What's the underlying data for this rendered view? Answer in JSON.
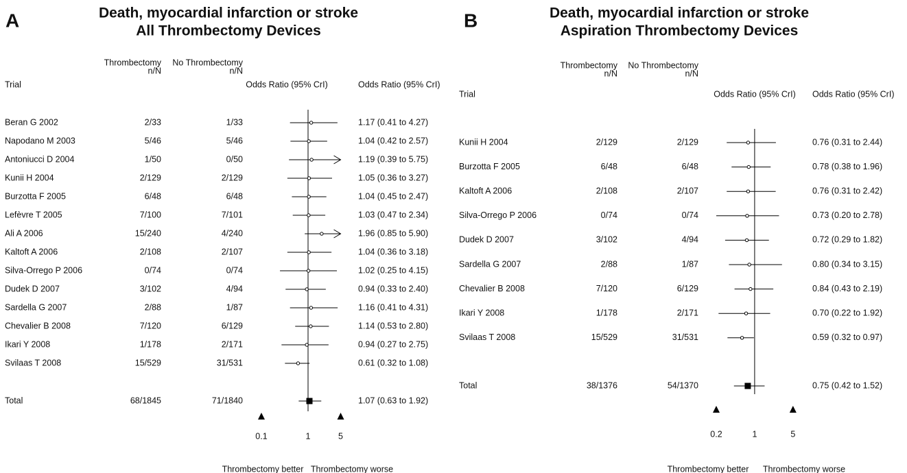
{
  "chart_data": [
    {
      "type": "forest",
      "panel": "A",
      "title": [
        "Death, myocardial infarction or stroke",
        "All Thrombectomy Devices"
      ],
      "columns": {
        "trial": "Trial",
        "treated": [
          "Thrombectomy",
          "n/N"
        ],
        "control": [
          "No Thrombectomy",
          "n/N"
        ],
        "plot": "Odds Ratio (95% CrI)",
        "estimate": "Odds Ratio (95% CrI)"
      },
      "categories": [
        "Beran G 2002",
        "Napodano M 2003",
        "Antoniucci D 2004",
        "Kunii H 2004",
        "Burzotta F 2005",
        "Lefèvre T 2005",
        "Ali A 2006",
        "Kaltoft A 2006",
        "Silva-Orrego P 2006",
        "Dudek D 2007",
        "Sardella G 2007",
        "Chevalier B 2008",
        "Ikari Y 2008",
        "Svilaas T 2008"
      ],
      "treated": [
        "2/33",
        "5/46",
        "1/50",
        "2/129",
        "6/48",
        "7/100",
        "15/240",
        "2/108",
        "0/74",
        "3/102",
        "2/88",
        "7/120",
        "1/178",
        "15/529"
      ],
      "control": [
        "1/33",
        "5/46",
        "0/50",
        "2/129",
        "6/48",
        "7/101",
        "4/240",
        "2/107",
        "0/74",
        "4/94",
        "1/87",
        "6/129",
        "2/171",
        "31/531"
      ],
      "values": [
        1.17,
        1.04,
        1.19,
        1.05,
        1.04,
        1.03,
        1.96,
        1.04,
        1.02,
        0.94,
        1.16,
        1.14,
        0.94,
        0.61
      ],
      "lower": [
        0.41,
        0.42,
        0.39,
        0.36,
        0.45,
        0.47,
        0.85,
        0.36,
        0.25,
        0.33,
        0.41,
        0.53,
        0.27,
        0.32
      ],
      "upper": [
        4.27,
        2.57,
        5.75,
        3.27,
        2.47,
        2.34,
        5.9,
        3.18,
        4.15,
        2.4,
        4.31,
        2.8,
        2.75,
        1.08
      ],
      "value_labels": [
        "1.17 (0.41 to 4.27)",
        "1.04 (0.42 to 2.57)",
        "1.19 (0.39 to 5.75)",
        "1.05 (0.36 to 3.27)",
        "1.04 (0.45 to 2.47)",
        "1.03 (0.47 to 2.34)",
        "1.96 (0.85 to 5.90)",
        "1.04 (0.36 to 3.18)",
        "1.02 (0.25 to 4.15)",
        "0.94 (0.33 to 2.40)",
        "1.16 (0.41 to 4.31)",
        "1.14 (0.53 to 2.80)",
        "0.94 (0.27 to 2.75)",
        "0.61 (0.32 to 1.08)"
      ],
      "total": {
        "name": "Total",
        "treated": "68/1845",
        "control": "71/1840",
        "value": 1.07,
        "lower": 0.63,
        "upper": 1.92,
        "value_label": "1.07 (0.63 to 1.92)"
      },
      "log_scale": true,
      "xlim": [
        0.1,
        5
      ],
      "xticks": [
        0.1,
        1,
        5
      ],
      "x_labels": [
        "Thrombectomy better",
        "Thrombectomy worse"
      ]
    },
    {
      "type": "forest",
      "panel": "B",
      "title": [
        "Death, myocardial infarction or stroke",
        "Aspiration Thrombectomy Devices"
      ],
      "columns": {
        "trial": "Trial",
        "treated": [
          "Thrombectomy",
          "n/N"
        ],
        "control": [
          "No Thrombectomy",
          "n/N"
        ],
        "plot": "Odds Ratio (95% CrI)",
        "estimate": "Odds Ratio (95% CrI)"
      },
      "categories": [
        "Kunii H 2004",
        "Burzotta F 2005",
        "Kaltoft A 2006",
        "Silva-Orrego P 2006",
        "Dudek D 2007",
        "Sardella G 2007",
        "Chevalier B 2008",
        "Ikari Y 2008",
        "Svilaas T 2008"
      ],
      "treated": [
        "2/129",
        "6/48",
        "2/108",
        "0/74",
        "3/102",
        "2/88",
        "7/120",
        "1/178",
        "15/529"
      ],
      "control": [
        "2/129",
        "6/48",
        "2/107",
        "0/74",
        "4/94",
        "1/87",
        "6/129",
        "2/171",
        "31/531"
      ],
      "values": [
        0.76,
        0.78,
        0.76,
        0.73,
        0.72,
        0.8,
        0.84,
        0.7,
        0.59
      ],
      "lower": [
        0.31,
        0.38,
        0.31,
        0.2,
        0.29,
        0.34,
        0.43,
        0.22,
        0.32
      ],
      "upper": [
        2.44,
        1.96,
        2.42,
        2.78,
        1.82,
        3.15,
        2.19,
        1.92,
        0.97
      ],
      "value_labels": [
        "0.76 (0.31 to 2.44)",
        "0.78 (0.38 to 1.96)",
        "0.76 (0.31 to 2.42)",
        "0.73 (0.20 to 2.78)",
        "0.72 (0.29 to 1.82)",
        "0.80 (0.34 to 3.15)",
        "0.84 (0.43 to 2.19)",
        "0.70 (0.22 to 1.92)",
        "0.59 (0.32 to 0.97)"
      ],
      "total": {
        "name": "Total",
        "treated": "38/1376",
        "control": "54/1370",
        "value": 0.75,
        "lower": 0.42,
        "upper": 1.52,
        "value_label": "0.75 (0.42 to 1.52)"
      },
      "log_scale": true,
      "xlim": [
        0.2,
        5
      ],
      "xticks": [
        0.2,
        1,
        5
      ],
      "x_labels": [
        "Thrombectomy better",
        "Thrombectomy worse"
      ]
    }
  ]
}
